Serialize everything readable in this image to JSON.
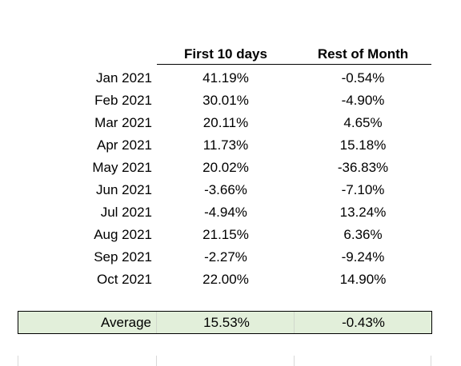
{
  "table": {
    "headers": {
      "first": "First 10 days",
      "rest": "Rest of Month"
    },
    "rows": [
      {
        "month": "Jan 2021",
        "first": "41.19%",
        "rest": "-0.54%"
      },
      {
        "month": "Feb 2021",
        "first": "30.01%",
        "rest": "-4.90%"
      },
      {
        "month": "Mar 2021",
        "first": "20.11%",
        "rest": "4.65%"
      },
      {
        "month": "Apr 2021",
        "first": "11.73%",
        "rest": "15.18%"
      },
      {
        "month": "May 2021",
        "first": "20.02%",
        "rest": "-36.83%"
      },
      {
        "month": "Jun 2021",
        "first": "-3.66%",
        "rest": "-7.10%"
      },
      {
        "month": "Jul 2021",
        "first": "-4.94%",
        "rest": "13.24%"
      },
      {
        "month": "Aug 2021",
        "first": "21.15%",
        "rest": "6.36%"
      },
      {
        "month": "Sep 2021",
        "first": "-2.27%",
        "rest": "-9.24%"
      },
      {
        "month": "Oct 2021",
        "first": "22.00%",
        "rest": "14.90%"
      }
    ],
    "average": {
      "label": "Average",
      "first": "15.53%",
      "rest": "-0.43%"
    }
  },
  "colors": {
    "average_fill": "#e2efda",
    "border": "#000000"
  }
}
